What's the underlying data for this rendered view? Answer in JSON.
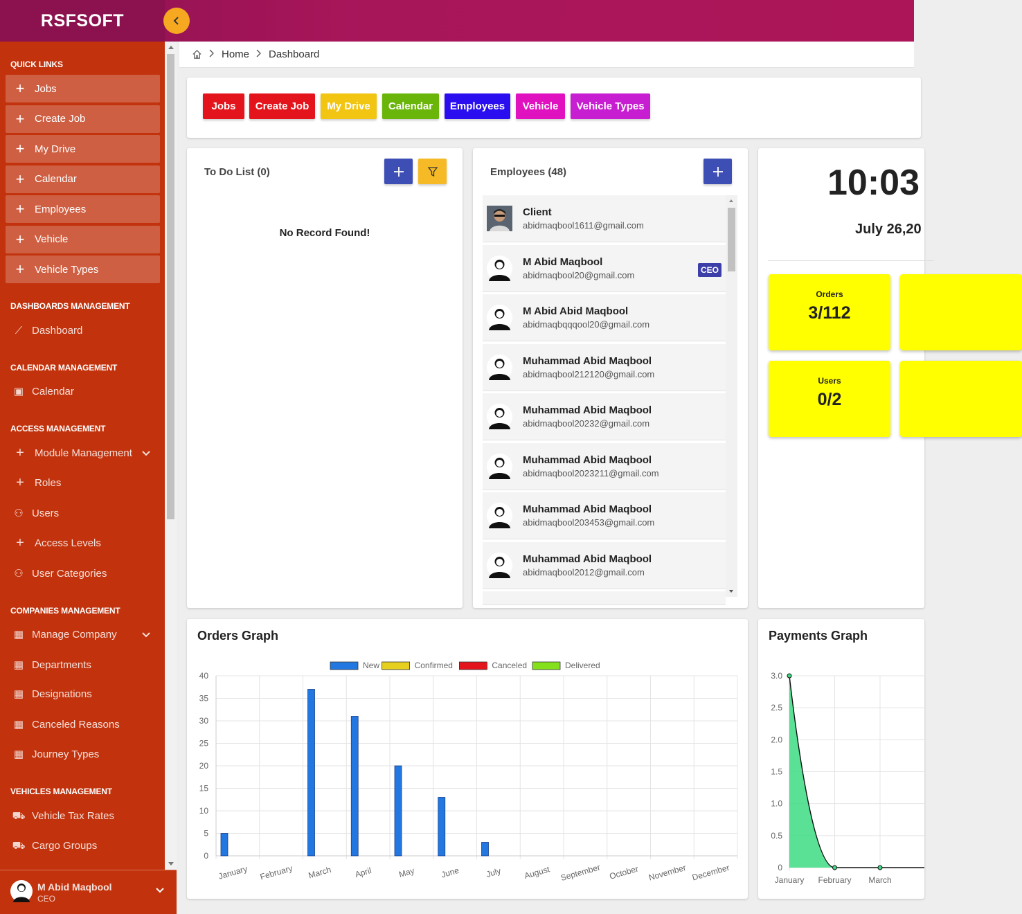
{
  "brand": "RSFSOFT",
  "breadcrumb": {
    "home": "Home",
    "current": "Dashboard"
  },
  "sidebar": {
    "quick_links_title": "QUICK LINKS",
    "quick_links": [
      "Jobs",
      "Create Job",
      "My Drive",
      "Calendar",
      "Employees",
      "Vehicle",
      "Vehicle Types"
    ],
    "sections": [
      {
        "title": "DASHBOARDS MANAGEMENT",
        "items": [
          {
            "label": "Dashboard",
            "icon": "chart-line-icon"
          }
        ]
      },
      {
        "title": "CALENDAR MANAGEMENT",
        "items": [
          {
            "label": "Calendar",
            "icon": "calendar-icon"
          }
        ]
      },
      {
        "title": "ACCESS MANAGEMENT",
        "items": [
          {
            "label": "Module Management",
            "icon": "plus-icon",
            "expandable": true
          },
          {
            "label": "Roles",
            "icon": "plus-icon"
          },
          {
            "label": "Users",
            "icon": "users-icon"
          },
          {
            "label": "Access Levels",
            "icon": "plus-icon"
          },
          {
            "label": "User Categories",
            "icon": "users-icon"
          }
        ]
      },
      {
        "title": "COMPANIES MANAGEMENT",
        "items": [
          {
            "label": "Manage Company",
            "icon": "building-icon",
            "expandable": true
          },
          {
            "label": "Departments",
            "icon": "building-icon"
          },
          {
            "label": "Designations",
            "icon": "building-icon"
          },
          {
            "label": "Canceled Reasons",
            "icon": "building-icon"
          },
          {
            "label": "Journey Types",
            "icon": "building-icon"
          }
        ]
      },
      {
        "title": "VEHICLES MANAGEMENT",
        "items": [
          {
            "label": "Vehicle Tax Rates",
            "icon": "car-icon"
          },
          {
            "label": "Cargo Groups",
            "icon": "car-icon"
          }
        ]
      }
    ],
    "user": {
      "name": "M Abid Maqbool",
      "role": "CEO"
    }
  },
  "quick_buttons": [
    {
      "label": "Jobs",
      "color": "#e3141b"
    },
    {
      "label": "Create Job",
      "color": "#e3141b"
    },
    {
      "label": "My Drive",
      "color": "#f2c512"
    },
    {
      "label": "Calendar",
      "color": "#6ab50a"
    },
    {
      "label": "Employees",
      "color": "#2a0ef0"
    },
    {
      "label": "Vehicle",
      "color": "#e012c0"
    },
    {
      "label": "Vehicle Types",
      "color": "#c61ed0"
    }
  ],
  "todo": {
    "title": "To Do List (0)",
    "empty": "No Record Found!"
  },
  "employees": {
    "title": "Employees (48)",
    "list": [
      {
        "name": "Client",
        "email": "abidmaqbool1611@gmail.com",
        "badge": ""
      },
      {
        "name": "M Abid Maqbool",
        "email": "abidmaqbool20@gmail.com",
        "badge": "CEO"
      },
      {
        "name": "M Abid Abid Maqbool",
        "email": "abidmaqbqqqool20@gmail.com",
        "badge": ""
      },
      {
        "name": "Muhammad Abid Maqbool",
        "email": "abidmaqbool212120@gmail.com",
        "badge": ""
      },
      {
        "name": "Muhammad Abid Maqbool",
        "email": "abidmaqbool20232@gmail.com",
        "badge": ""
      },
      {
        "name": "Muhammad Abid Maqbool",
        "email": "abidmaqbool2023211@gmail.com",
        "badge": ""
      },
      {
        "name": "Muhammad Abid Maqbool",
        "email": "abidmaqbool203453@gmail.com",
        "badge": ""
      },
      {
        "name": "Muhammad Abid Maqbool",
        "email": "abidmaqbool2012@gmail.com",
        "badge": ""
      }
    ]
  },
  "clock": {
    "time": "10:03",
    "date": "July 26,20"
  },
  "stats": [
    {
      "label": "Orders",
      "value": "3/112"
    },
    {
      "label": "Users",
      "value": "0/2"
    }
  ],
  "orders_graph": {
    "title": "Orders Graph",
    "chart_data": {
      "type": "bar",
      "categories": [
        "January",
        "February",
        "March",
        "April",
        "May",
        "June",
        "July",
        "August",
        "September",
        "October",
        "November",
        "December"
      ],
      "series": [
        {
          "name": "New",
          "color": "#2277e0",
          "values": [
            5,
            0,
            37,
            31,
            20,
            13,
            3,
            0,
            0,
            0,
            0,
            0
          ]
        },
        {
          "name": "Confirmed",
          "color": "#e6cf1e",
          "values": [
            0,
            0,
            0,
            0,
            0,
            0,
            0,
            0,
            0,
            0,
            0,
            0
          ]
        },
        {
          "name": "Canceled",
          "color": "#e3141b",
          "values": [
            0,
            0,
            0,
            0,
            0,
            0,
            0,
            0,
            0,
            0,
            0,
            0
          ]
        },
        {
          "name": "Delivered",
          "color": "#85e01c",
          "values": [
            0,
            0,
            0,
            0,
            0,
            0,
            0,
            0,
            0,
            0,
            0,
            0
          ]
        }
      ],
      "ylim": [
        0,
        40
      ],
      "yticks": [
        0,
        5,
        10,
        15,
        20,
        25,
        30,
        35,
        40
      ],
      "legend": "top"
    }
  },
  "payments_graph": {
    "title": "Payments Graph",
    "chart_data": {
      "type": "area",
      "categories": [
        "January",
        "February",
        "March"
      ],
      "values": [
        3.0,
        0,
        0
      ],
      "ylim": [
        0,
        3.0
      ],
      "yticks": [
        "0",
        "0.5",
        "1.0",
        "1.5",
        "2.0",
        "2.5",
        "3.0"
      ],
      "color": "#3ddc84"
    }
  }
}
